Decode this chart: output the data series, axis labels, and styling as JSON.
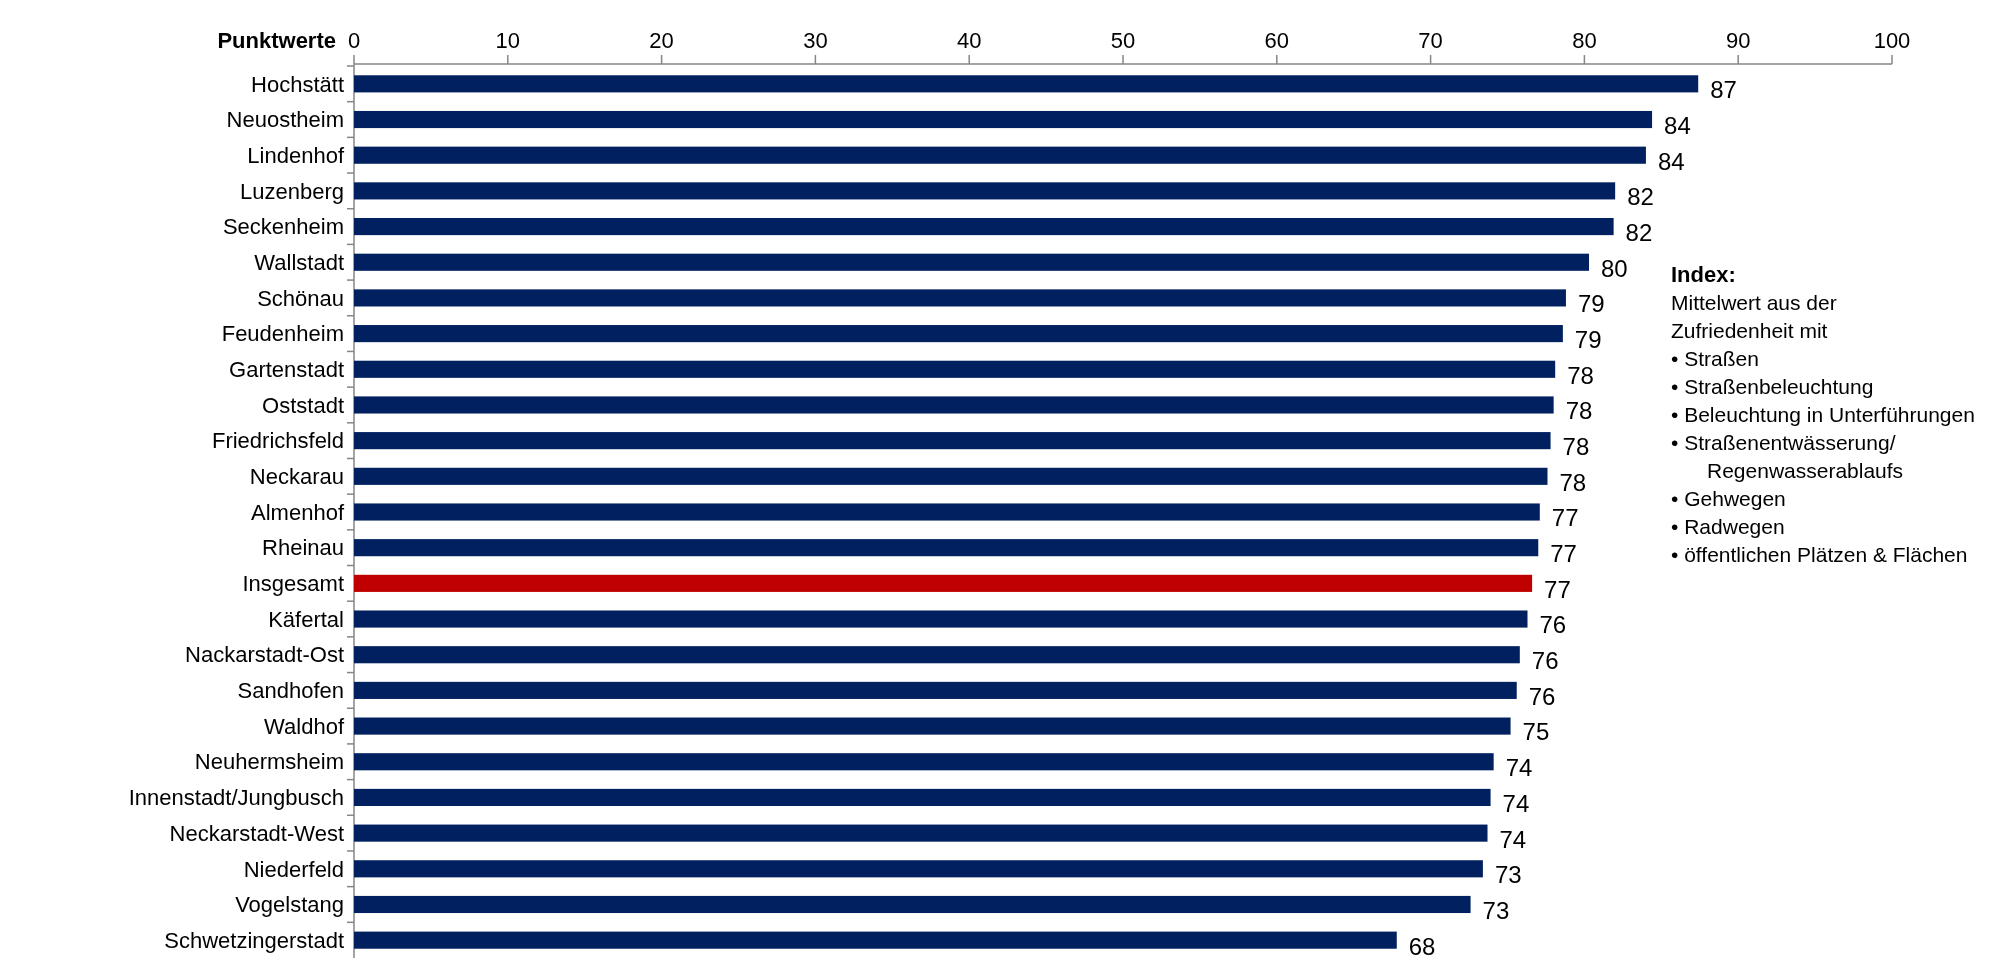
{
  "chart_data": {
    "type": "bar",
    "orientation": "horizontal",
    "xlabel": "Punktwerte",
    "categories": [
      "Hochstätt",
      "Neuostheim",
      "Lindenhof",
      "Luzenberg",
      "Seckenheim",
      "Wallstadt",
      "Schönau",
      "Feudenheim",
      "Gartenstadt",
      "Oststadt",
      "Friedrichsfeld",
      "Neckarau",
      "Almenhof",
      "Rheinau",
      "Insgesamt",
      "Käfertal",
      "Nackarstadt-Ost",
      "Sandhofen",
      "Waldhof",
      "Neuhermsheim",
      "Innenstadt/Jungbusch",
      "Neckarstadt-West",
      "Niederfeld",
      "Vogelstang",
      "Schwetzingerstadt"
    ],
    "values": [
      87.4,
      84.4,
      84.0,
      82.0,
      81.9,
      80.3,
      78.8,
      78.6,
      78.1,
      78.0,
      77.8,
      77.6,
      77.1,
      77.0,
      76.6,
      76.3,
      75.8,
      75.6,
      75.2,
      74.1,
      73.9,
      73.7,
      73.4,
      72.6,
      67.8
    ],
    "value_labels": [
      "87",
      "84",
      "84",
      "82",
      "82",
      "80",
      "79",
      "79",
      "78",
      "78",
      "78",
      "78",
      "77",
      "77",
      "77",
      "76",
      "76",
      "76",
      "75",
      "74",
      "74",
      "74",
      "73",
      "73",
      "68"
    ],
    "colors": [
      "#002060",
      "#002060",
      "#002060",
      "#002060",
      "#002060",
      "#002060",
      "#002060",
      "#002060",
      "#002060",
      "#002060",
      "#002060",
      "#002060",
      "#002060",
      "#002060",
      "#c00000",
      "#002060",
      "#002060",
      "#002060",
      "#002060",
      "#002060",
      "#002060",
      "#002060",
      "#002060",
      "#002060",
      "#002060"
    ],
    "xlim": [
      0,
      100
    ],
    "xticks": [
      0,
      10,
      20,
      30,
      40,
      50,
      60,
      70,
      80,
      90,
      100
    ],
    "grid": false,
    "annotations": [
      "Index:",
      "Mittelwert aus der Zufriedenheit mit",
      "• Straßen",
      "• Straßenbeleuchtung",
      "• Beleuchtung in Unterführungen",
      "• Straßenentwässerung/ Regenwasserablaufs",
      "• Gehwegen",
      "• Radwegen",
      "• öffentlichen Plätzen & Flächen"
    ]
  }
}
